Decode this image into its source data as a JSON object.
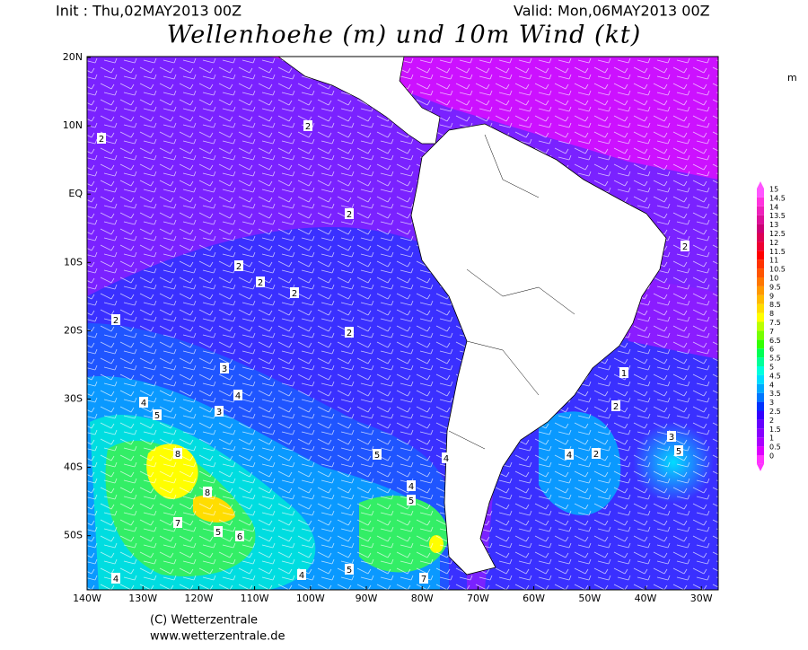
{
  "header": {
    "init": "Init : Thu,02MAY2013 00Z",
    "valid": "Valid: Mon,06MAY2013 00Z",
    "title": "Wellenhoehe (m) und 10m Wind (kt)"
  },
  "map": {
    "lat_labels": [
      "20N",
      "10N",
      "EQ",
      "10S",
      "20S",
      "30S",
      "40S",
      "50S"
    ],
    "lon_labels": [
      "140W",
      "130W",
      "120W",
      "110W",
      "100W",
      "90W",
      "80W",
      "70W",
      "60W",
      "50W",
      "40W",
      "30W"
    ],
    "contour_labels": [
      2,
      2,
      2,
      2,
      2,
      2,
      2,
      2,
      2,
      3,
      4,
      4,
      3,
      5,
      8,
      8,
      7,
      5,
      6,
      5,
      4,
      4,
      5,
      1,
      2,
      4,
      2,
      5,
      3,
      4,
      4,
      5,
      7
    ]
  },
  "colorbar": {
    "unit": "m",
    "levels": [
      0,
      0.5,
      1,
      1.5,
      2,
      2.5,
      3,
      3.5,
      4,
      4.5,
      5,
      5.5,
      6,
      6.5,
      7,
      7.5,
      8,
      8.5,
      9,
      9.5,
      10,
      10.5,
      11,
      11.5,
      12,
      12.5,
      13,
      13.5,
      14,
      14.5,
      15
    ],
    "colors": [
      "#ff33ff",
      "#dd00ff",
      "#aa00ff",
      "#8800ff",
      "#6600ff",
      "#3300ff",
      "#0033ff",
      "#0077ff",
      "#00aaff",
      "#00ddff",
      "#00ffdd",
      "#00ff99",
      "#00ff55",
      "#33ff00",
      "#77ff00",
      "#bbff00",
      "#ffff00",
      "#ffdd00",
      "#ffbb00",
      "#ff9900",
      "#ff7700",
      "#ff5500",
      "#ff3300",
      "#ff0000",
      "#ee0033",
      "#dd0055",
      "#cc0077",
      "#dd1199",
      "#ee22bb",
      "#ff33dd",
      "#ff55ff"
    ]
  },
  "footer": {
    "copyright": "(C) Wetterzentrale",
    "url": "www.wetterzentrale.de"
  }
}
